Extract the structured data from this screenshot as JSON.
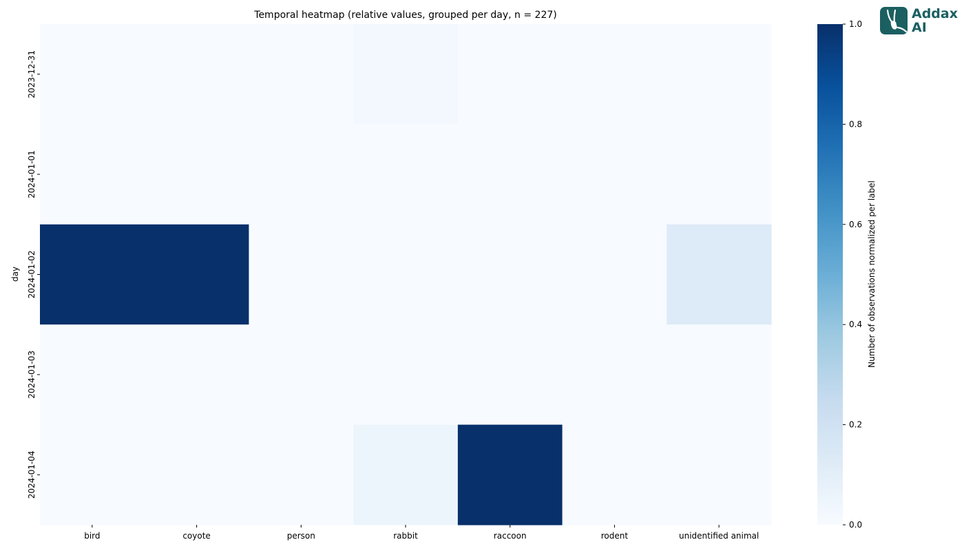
{
  "chart_data": {
    "type": "heatmap",
    "title": "Temporal heatmap (relative values, grouped per day, n = 227)",
    "xlabel": "",
    "ylabel": "day",
    "columns": [
      "bird",
      "coyote",
      "person",
      "rabbit",
      "raccoon",
      "rodent",
      "unidentified animal"
    ],
    "rows": [
      "2023-12-31",
      "2024-01-01",
      "2024-01-02",
      "2024-01-03",
      "2024-01-04"
    ],
    "values": [
      [
        0,
        0,
        0,
        0.02,
        0,
        0,
        0
      ],
      [
        0,
        0,
        0,
        0,
        0,
        0,
        0
      ],
      [
        1.0,
        1.0,
        0,
        0,
        0,
        0,
        0.13
      ],
      [
        0,
        0,
        0,
        0,
        0,
        0,
        0
      ],
      [
        0,
        0,
        0,
        0.05,
        1.0,
        0,
        0
      ]
    ],
    "colorbar": {
      "label": "Number of observations normalized per label",
      "range": [
        0,
        1
      ],
      "ticks": [
        "0.0",
        "0.2",
        "0.4",
        "0.6",
        "0.8",
        "1.0"
      ],
      "colormap": "Blues"
    }
  },
  "logo": {
    "line1": "Addax",
    "line2": "AI",
    "color": "#1b5f61"
  }
}
